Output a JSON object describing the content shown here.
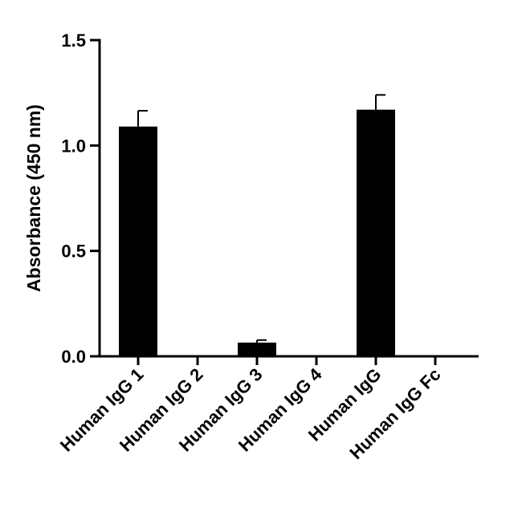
{
  "chart_data": {
    "type": "bar",
    "title": "",
    "xlabel": "",
    "ylabel": "Absorbance (450 nm)",
    "categories": [
      "Human IgG 1",
      "Human IgG 2",
      "Human IgG 3",
      "Human IgG 4",
      "Human IgG",
      "Human IgG Fc"
    ],
    "values": [
      1.09,
      0.0,
      0.065,
      0.0,
      1.17,
      0.0
    ],
    "errors": [
      0.075,
      0.0,
      0.012,
      0.0,
      0.07,
      0.0
    ],
    "ylim": [
      0,
      1.5
    ],
    "yticks": [
      0.0,
      0.5,
      1.0,
      1.5
    ],
    "ytick_labels": [
      "0.0",
      "0.5",
      "1.0",
      "1.5"
    ],
    "grid": false,
    "bar_color": "#000000"
  }
}
